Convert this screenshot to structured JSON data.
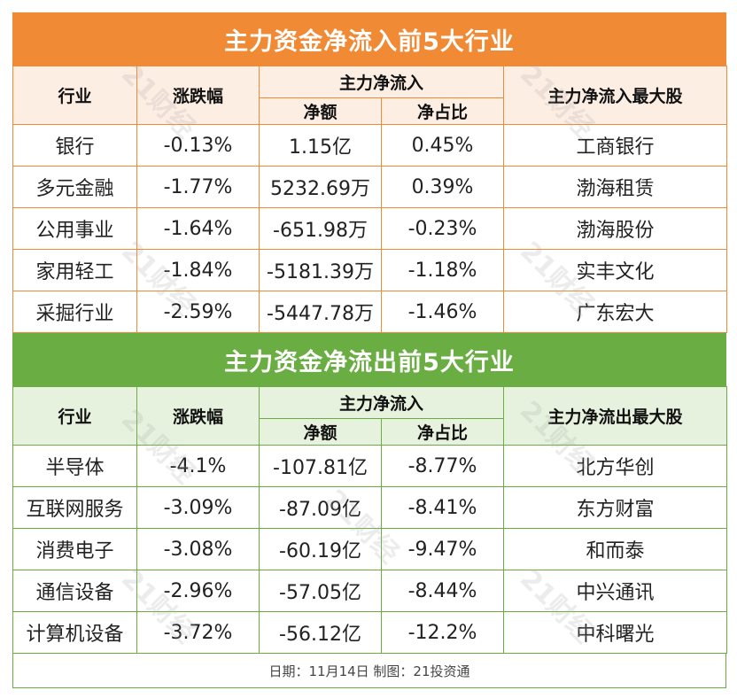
{
  "inflow": {
    "title": "主力资金净流入前5大行业",
    "headers": {
      "industry": "行业",
      "change": "涨跌幅",
      "main_flow": "主力净流入",
      "net_amount": "净额",
      "net_ratio": "净占比",
      "top_stock": "主力净流入最大股"
    },
    "rows": [
      {
        "industry": "银行",
        "change": "-0.13%",
        "amount": "1.15亿",
        "ratio": "0.45%",
        "stock": "工商银行"
      },
      {
        "industry": "多元金融",
        "change": "-1.77%",
        "amount": "5232.69万",
        "ratio": "0.39%",
        "stock": "渤海租赁"
      },
      {
        "industry": "公用事业",
        "change": "-1.64%",
        "amount": "-651.98万",
        "ratio": "-0.23%",
        "stock": "渤海股份"
      },
      {
        "industry": "家用轻工",
        "change": "-1.84%",
        "amount": "-5181.39万",
        "ratio": "-1.18%",
        "stock": "实丰文化"
      },
      {
        "industry": "采掘行业",
        "change": "-2.59%",
        "amount": "-5447.78万",
        "ratio": "-1.46%",
        "stock": "广东宏大"
      }
    ]
  },
  "outflow": {
    "title": "主力资金净流出前5大行业",
    "headers": {
      "industry": "行业",
      "change": "涨跌幅",
      "main_flow": "主力净流入",
      "net_amount": "净额",
      "net_ratio": "净占比",
      "top_stock": "主力净流出最大股"
    },
    "rows": [
      {
        "industry": "半导体",
        "change": "-4.1%",
        "amount": "-107.81亿",
        "ratio": "-8.77%",
        "stock": "北方华创"
      },
      {
        "industry": "互联网服务",
        "change": "-3.09%",
        "amount": "-87.09亿",
        "ratio": "-8.41%",
        "stock": "东方财富"
      },
      {
        "industry": "消费电子",
        "change": "-3.08%",
        "amount": "-60.19亿",
        "ratio": "-9.47%",
        "stock": "和而泰"
      },
      {
        "industry": "通信设备",
        "change": "-2.96%",
        "amount": "-57.05亿",
        "ratio": "-8.44%",
        "stock": "中兴通讯"
      },
      {
        "industry": "计算机设备",
        "change": "-3.72%",
        "amount": "-56.12亿",
        "ratio": "-12.2%",
        "stock": "中科曙光"
      }
    ]
  },
  "footer": "日期：11月14日 制图：21投资通",
  "watermark": "21财经",
  "colors": {
    "inflow_accent": "#f08a34",
    "outflow_accent": "#6aae43"
  }
}
